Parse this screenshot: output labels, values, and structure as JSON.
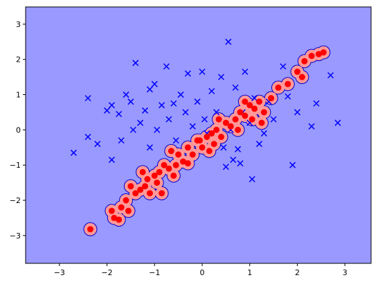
{
  "chart_data": {
    "type": "scatter",
    "background_color": "#9999ff",
    "region_color": "#ff9999",
    "region_edge_color": "#0000cc",
    "xlim": [
      -3.71,
      3.55
    ],
    "ylim": [
      -3.79,
      3.49
    ],
    "xticks": [
      {
        "value": -3,
        "label": "−3"
      },
      {
        "value": -2,
        "label": "−2"
      },
      {
        "value": -1,
        "label": "−1"
      },
      0,
      1,
      2,
      3
    ],
    "yticks": [
      {
        "value": -3,
        "label": "−3"
      },
      {
        "value": -2,
        "label": "−2"
      },
      {
        "value": -1,
        "label": "−1"
      },
      0,
      1,
      2,
      3
    ],
    "series": [
      {
        "color": "#0000ff",
        "marker": "x",
        "x": [
          -2.7,
          -2.4,
          -2.4,
          -2.2,
          -2.0,
          -1.9,
          -1.9,
          -1.75,
          -1.7,
          -1.6,
          -1.5,
          -1.45,
          -1.4,
          -1.3,
          -1.2,
          -1.1,
          -1.1,
          -1.0,
          -0.95,
          -0.85,
          -0.75,
          -0.7,
          -0.6,
          -0.55,
          -0.45,
          -0.35,
          -0.3,
          -0.2,
          -0.1,
          0.0,
          0.05,
          0.1,
          0.2,
          0.3,
          0.4,
          0.45,
          0.55,
          0.6,
          0.7,
          0.75,
          0.8,
          0.85,
          0.9,
          1.0,
          1.05,
          1.1,
          1.3,
          1.4,
          1.5,
          1.7,
          1.8,
          1.9,
          2.0,
          2.3,
          2.4,
          2.7,
          2.85,
          0.5,
          0.65,
          1.2
        ],
        "y": [
          -0.65,
          0.9,
          -0.2,
          -0.4,
          0.55,
          0.7,
          -0.85,
          0.45,
          -0.3,
          1.0,
          0.8,
          0.0,
          1.9,
          0.2,
          0.55,
          -0.5,
          1.15,
          1.3,
          0.0,
          0.7,
          1.8,
          0.3,
          0.75,
          -0.3,
          1.0,
          0.5,
          1.6,
          0.1,
          0.8,
          1.65,
          0.3,
          -0.1,
          1.1,
          0.5,
          1.5,
          -0.5,
          2.5,
          0.0,
          1.2,
          -0.55,
          -0.95,
          0.5,
          1.65,
          0.2,
          -1.4,
          0.9,
          -0.1,
          0.8,
          0.3,
          1.8,
          0.95,
          -1.0,
          0.5,
          0.1,
          0.75,
          1.55,
          0.2,
          -1.05,
          -0.85,
          -0.4
        ]
      },
      {
        "color": "#ff0000",
        "marker": "o",
        "x": [
          -2.35,
          -1.9,
          -1.85,
          -1.75,
          -1.7,
          -1.6,
          -1.55,
          -1.4,
          -1.3,
          -1.2,
          -1.15,
          -1.1,
          -1.0,
          -0.9,
          -0.85,
          -0.8,
          -0.7,
          -0.6,
          -0.5,
          -0.4,
          -0.3,
          -0.2,
          -0.1,
          0.0,
          0.1,
          0.15,
          0.2,
          0.3,
          0.4,
          0.5,
          0.6,
          0.7,
          0.8,
          0.9,
          1.0,
          1.1,
          1.2,
          1.3,
          1.45,
          1.6,
          1.8,
          2.0,
          2.1,
          2.15,
          2.3,
          2.45,
          2.55,
          -1.25,
          -0.95,
          -0.55,
          0.25,
          0.75,
          1.05,
          -1.5,
          -0.3,
          -0.05,
          0.35,
          0.9,
          1.25,
          -0.65
        ],
        "y": [
          -2.82,
          -2.3,
          -2.5,
          -2.55,
          -2.2,
          -2.0,
          -2.3,
          -1.8,
          -1.7,
          -1.6,
          -1.4,
          -1.8,
          -1.3,
          -1.2,
          -1.8,
          -1.0,
          -1.1,
          -1.3,
          -0.7,
          -0.9,
          -0.5,
          -0.7,
          -0.3,
          -0.5,
          -0.2,
          -0.6,
          -0.1,
          0.0,
          -0.2,
          0.2,
          0.1,
          0.3,
          0.5,
          0.4,
          0.7,
          0.6,
          0.8,
          0.5,
          0.9,
          1.2,
          1.3,
          1.65,
          1.5,
          1.95,
          2.1,
          2.15,
          2.2,
          -1.2,
          -1.5,
          -1.0,
          -0.4,
          0.0,
          0.3,
          -1.6,
          -0.95,
          -0.3,
          0.3,
          0.8,
          0.2,
          -0.6
        ]
      }
    ]
  }
}
